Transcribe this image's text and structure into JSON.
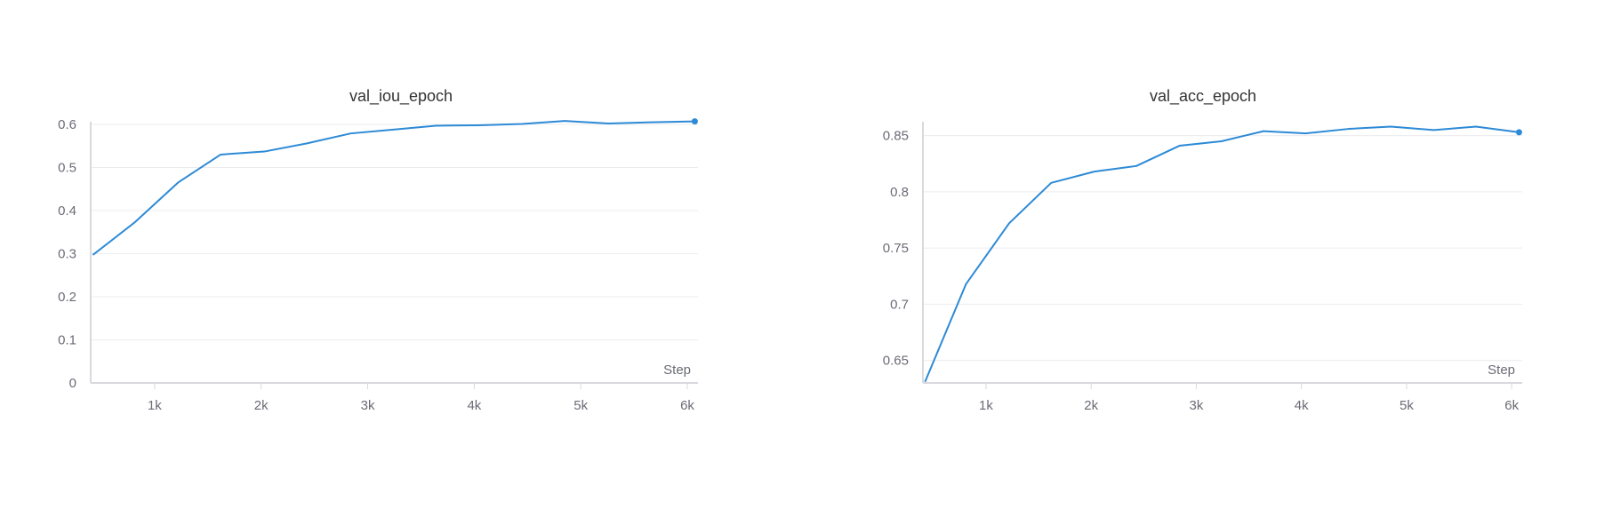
{
  "chart_data": [
    {
      "type": "line",
      "title": "val_iou_epoch",
      "xlabel": "Step",
      "ylabel": "",
      "xlim": [
        400,
        6100
      ],
      "ylim": [
        0,
        0.6
      ],
      "x_ticks": [
        1000,
        2000,
        3000,
        4000,
        5000,
        6000
      ],
      "x_tick_labels": [
        "1k",
        "2k",
        "3k",
        "4k",
        "5k",
        "6k"
      ],
      "y_ticks": [
        0,
        0.1,
        0.2,
        0.3,
        0.4,
        0.5,
        0.6
      ],
      "y_tick_labels": [
        "0",
        "0.1",
        "0.2",
        "0.3",
        "0.4",
        "0.5",
        "0.6"
      ],
      "grid": true,
      "color": "#2d8ad6",
      "series": [
        {
          "x": [
            420,
            810,
            1220,
            1620,
            2030,
            2430,
            2840,
            3240,
            3640,
            4040,
            4450,
            4850,
            5260,
            5660,
            6070
          ],
          "y": [
            0.297,
            0.372,
            0.465,
            0.53,
            0.537,
            0.556,
            0.579,
            0.588,
            0.597,
            0.598,
            0.601,
            0.608,
            0.602,
            0.605,
            0.607
          ]
        }
      ]
    },
    {
      "type": "line",
      "title": "val_acc_epoch",
      "xlabel": "Step",
      "ylabel": "",
      "xlim": [
        400,
        6100
      ],
      "ylim": [
        0.63,
        0.86
      ],
      "x_ticks": [
        1000,
        2000,
        3000,
        4000,
        5000,
        6000
      ],
      "x_tick_labels": [
        "1k",
        "2k",
        "3k",
        "4k",
        "5k",
        "6k"
      ],
      "y_ticks": [
        0.65,
        0.7,
        0.75,
        0.8,
        0.85
      ],
      "y_tick_labels": [
        "0.65",
        "0.7",
        "0.75",
        "0.8",
        "0.85"
      ],
      "grid": true,
      "color": "#2d8ad6",
      "series": [
        {
          "x": [
            420,
            810,
            1220,
            1620,
            2030,
            2430,
            2840,
            3240,
            3640,
            4040,
            4450,
            4850,
            5260,
            5660,
            6070
          ],
          "y": [
            0.631,
            0.718,
            0.772,
            0.808,
            0.818,
            0.823,
            0.841,
            0.845,
            0.854,
            0.852,
            0.856,
            0.858,
            0.855,
            0.858,
            0.853
          ]
        }
      ]
    }
  ]
}
